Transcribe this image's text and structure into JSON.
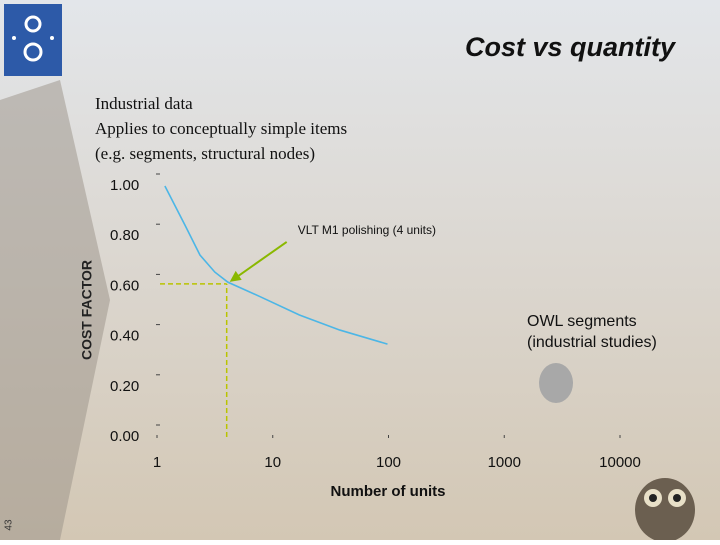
{
  "slide_number": "43",
  "chart_data": {
    "type": "line",
    "title": "Cost vs quantity",
    "notes": [
      "Industrial data",
      "Applies to conceptually simple items",
      "(e.g. segments, structural nodes)"
    ],
    "x_label": "Number of units",
    "y_label": "COST FACTOR",
    "log_x": true,
    "xlim": [
      1,
      10000
    ],
    "xticks": [
      1,
      10,
      100,
      1000,
      10000
    ],
    "ylim": [
      0,
      1
    ],
    "yticks": [
      {
        "value": 0,
        "label": "0.00"
      },
      {
        "value": 0.2,
        "label": "0.20"
      },
      {
        "value": 0.4,
        "label": "0.40"
      },
      {
        "value": 0.6,
        "label": "0.60"
      },
      {
        "value": 0.8,
        "label": "0.80"
      },
      {
        "value": 1,
        "label": "1.00"
      }
    ],
    "series": [
      {
        "color": "#4cb6e6",
        "x": [
          1.17,
          1.74,
          2.35,
          3.16,
          4.09,
          7.7,
          17,
          38,
          98
        ],
        "values": [
          1.0,
          0.845,
          0.725,
          0.657,
          0.617,
          0.56,
          0.486,
          0.426,
          0.37
        ]
      }
    ],
    "annotations": [
      {
        "text": "VLT M1 polishing (4 units)",
        "x": 4,
        "y": 0.61,
        "color": "#8ab800",
        "guide_color": "#b9c400"
      }
    ],
    "points": [
      {
        "x": 2800,
        "y": 0.215,
        "color": "#a8a8a8",
        "label_lines": [
          "OWL segments",
          "(industrial studies)"
        ]
      }
    ]
  }
}
